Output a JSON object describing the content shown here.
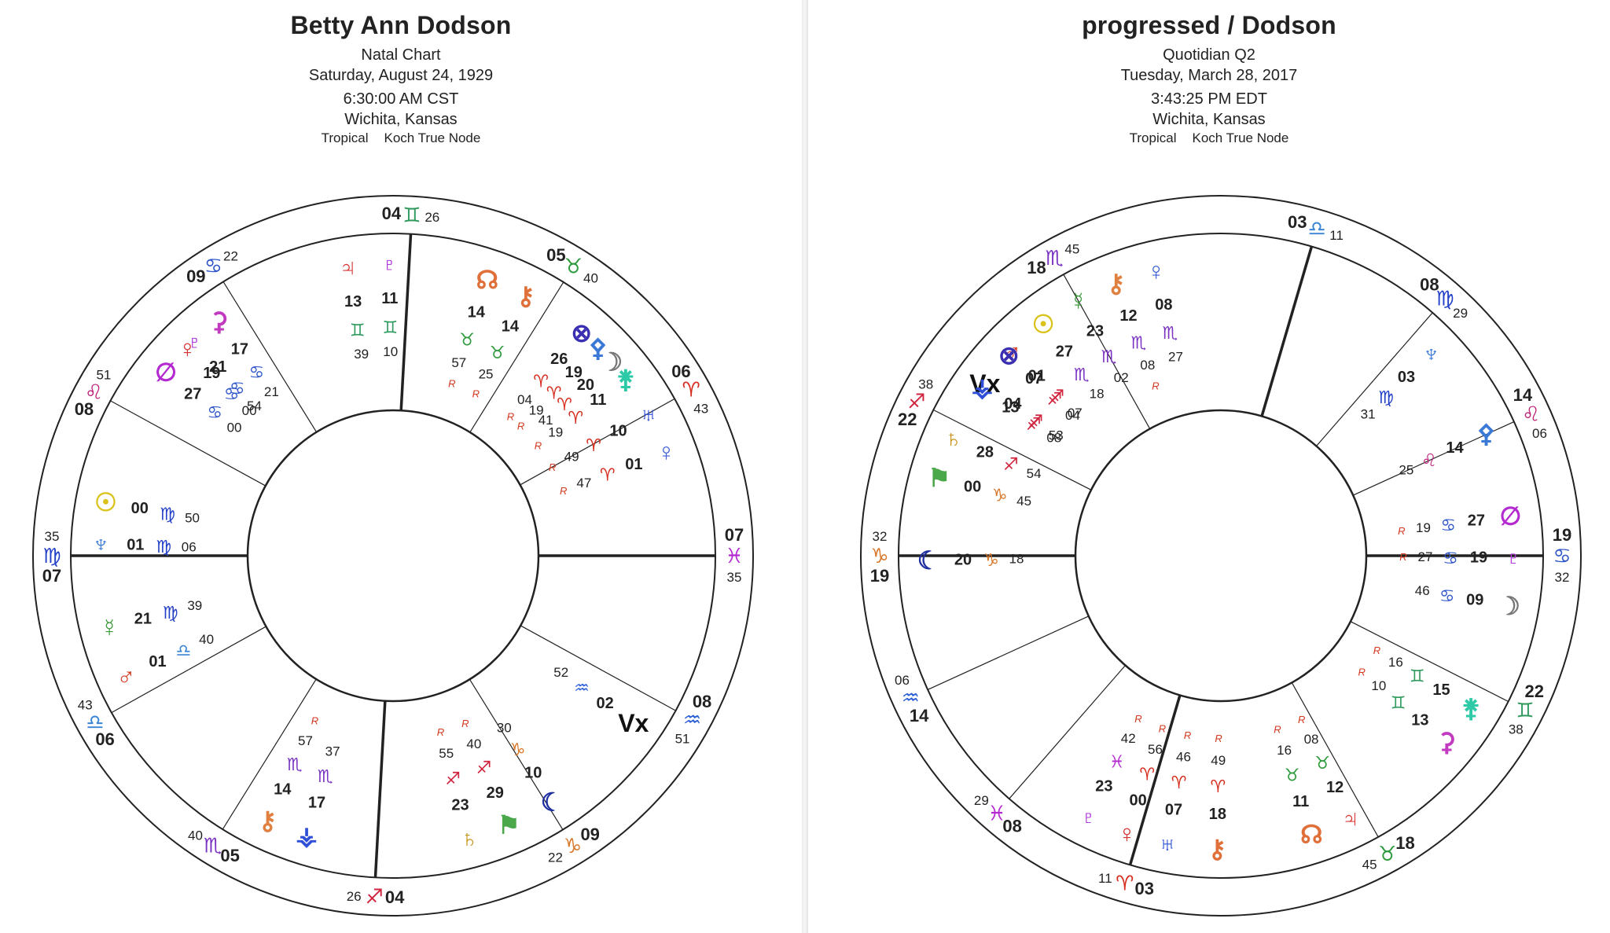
{
  "left": {
    "title": "Betty Ann Dodson",
    "chart_type": "Natal Chart",
    "date": "Saturday, August 24, 1929",
    "time": "6:30:00 AM CST",
    "location": "Wichita, Kansas",
    "zodiac": "Tropical",
    "house_system": "Koch True Node",
    "cusps": [
      {
        "deg": "07",
        "min": "35",
        "sign": "virgo"
      },
      {
        "deg": "06",
        "min": "43",
        "sign": "libra"
      },
      {
        "deg": "05",
        "min": "40",
        "sign": "scorpio"
      },
      {
        "deg": "04",
        "min": "26",
        "sign": "sagittarius"
      },
      {
        "deg": "09",
        "min": "22",
        "sign": "capricorn"
      },
      {
        "deg": "08",
        "min": "51",
        "sign": "aquarius"
      },
      {
        "deg": "07",
        "min": "35",
        "sign": "pisces"
      },
      {
        "deg": "06",
        "min": "43",
        "sign": "aries"
      },
      {
        "deg": "05",
        "min": "40",
        "sign": "taurus"
      },
      {
        "deg": "04",
        "min": "26",
        "sign": "gemini"
      },
      {
        "deg": "09",
        "min": "22",
        "sign": "cancer"
      },
      {
        "deg": "08",
        "min": "51",
        "sign": "leo"
      }
    ],
    "planets": [
      {
        "glyph": "sun",
        "deg": "00",
        "sign": "virgo",
        "min": "50",
        "r": false
      },
      {
        "glyph": "neptune",
        "deg": "01",
        "sign": "virgo",
        "min": "06",
        "r": false
      },
      {
        "glyph": "mercury",
        "deg": "21",
        "sign": "virgo",
        "min": "39",
        "r": false
      },
      {
        "glyph": "mars",
        "deg": "01",
        "sign": "libra",
        "min": "40",
        "r": false
      },
      {
        "glyph": "chiron",
        "deg": "14",
        "sign": "scorpio",
        "min": "57",
        "r": true
      },
      {
        "glyph": "vesta",
        "deg": "17",
        "sign": "scorpio",
        "min": "37",
        "r": false
      },
      {
        "glyph": "saturn",
        "deg": "23",
        "sign": "sagittarius",
        "min": "55",
        "r": true
      },
      {
        "glyph": "fortune",
        "deg": "29",
        "sign": "sagittarius",
        "min": "40",
        "r": true
      },
      {
        "glyph": "lilith",
        "deg": "10",
        "sign": "capricorn",
        "min": "30",
        "r": false
      },
      {
        "glyph": "vertex",
        "deg": "02",
        "sign": "aquarius",
        "min": "52",
        "r": false
      },
      {
        "glyph": "venus",
        "deg": "01",
        "sign": "aries",
        "min": "47",
        "r": true
      },
      {
        "glyph": "uranus",
        "deg": "10",
        "sign": "aries",
        "min": "49",
        "r": true
      },
      {
        "glyph": "juno",
        "deg": "11",
        "sign": "aries",
        "min": "19",
        "r": true
      },
      {
        "glyph": "pallas",
        "deg": "19",
        "sign": "aries",
        "min": "19",
        "r": true
      },
      {
        "glyph": "moon",
        "deg": "20",
        "sign": "aries",
        "min": "41",
        "r": false
      },
      {
        "glyph": "lot",
        "deg": "26",
        "sign": "aries",
        "min": "04",
        "r": true
      },
      {
        "glyph": "node",
        "deg": "14",
        "sign": "taurus",
        "min": "57",
        "r": true
      },
      {
        "glyph": "lilith2",
        "deg": "14",
        "sign": "taurus",
        "min": "25",
        "r": true
      },
      {
        "glyph": "pluto",
        "deg": "11",
        "sign": "gemini",
        "min": "10",
        "r": false
      },
      {
        "glyph": "jupiter",
        "deg": "13",
        "sign": "gemini",
        "min": "39",
        "r": false
      },
      {
        "glyph": "ceres",
        "deg": "17",
        "sign": "cancer",
        "min": "21",
        "r": false
      },
      {
        "glyph": "venus2",
        "deg": "19",
        "sign": "cancer",
        "min": "00",
        "r": false
      },
      {
        "glyph": "pluto2",
        "deg": "21",
        "sign": "cancer",
        "min": "54",
        "r": false
      },
      {
        "glyph": "antivertex",
        "deg": "27",
        "sign": "cancer",
        "min": "00",
        "r": false
      }
    ]
  },
  "right": {
    "title": "progressed / Dodson",
    "chart_type": "Quotidian Q2",
    "date": "Tuesday, March 28, 2017",
    "time": "3:43:25 PM EDT",
    "location": "Wichita, Kansas",
    "zodiac": "Tropical",
    "house_system": "Koch True Node",
    "cusps": [
      {
        "deg": "19",
        "min": "32",
        "sign": "capricorn"
      },
      {
        "deg": "14",
        "min": "06",
        "sign": "aquarius"
      },
      {
        "deg": "08",
        "min": "29",
        "sign": "pisces"
      },
      {
        "deg": "03",
        "min": "11",
        "sign": "aries"
      },
      {
        "deg": "18",
        "min": "45",
        "sign": "taurus"
      },
      {
        "deg": "22",
        "min": "38",
        "sign": "gemini"
      },
      {
        "deg": "19",
        "min": "32",
        "sign": "cancer"
      },
      {
        "deg": "14",
        "min": "06",
        "sign": "leo"
      },
      {
        "deg": "08",
        "min": "29",
        "sign": "virgo"
      },
      {
        "deg": "03",
        "min": "11",
        "sign": "libra"
      },
      {
        "deg": "18",
        "min": "45",
        "sign": "scorpio"
      },
      {
        "deg": "22",
        "min": "38",
        "sign": "sagittarius"
      }
    ],
    "planets": [
      {
        "glyph": "lilith",
        "deg": "20",
        "sign": "capricorn",
        "min": "18",
        "r": false
      },
      {
        "glyph": "fortune",
        "deg": "00",
        "sign": "capricorn",
        "min": "45",
        "r": false
      },
      {
        "glyph": "saturn",
        "deg": "28",
        "sign": "sagittarius",
        "min": "54",
        "r": false
      },
      {
        "glyph": "vesta",
        "deg": "13",
        "sign": "sagittarius",
        "min": "08",
        "r": false
      },
      {
        "glyph": "lot",
        "deg": "07",
        "sign": "sagittarius",
        "min": "04",
        "r": false
      },
      {
        "glyph": "vertex",
        "deg": "04",
        "sign": "sagittarius",
        "min": "53",
        "r": false
      },
      {
        "glyph": "mars",
        "deg": "01",
        "sign": "sagittarius",
        "min": "07",
        "r": false
      },
      {
        "glyph": "sun",
        "deg": "27",
        "sign": "scorpio",
        "min": "18",
        "r": false
      },
      {
        "glyph": "mercury",
        "deg": "23",
        "sign": "scorpio",
        "min": "02",
        "r": false
      },
      {
        "glyph": "chiron",
        "deg": "12",
        "sign": "scorpio",
        "min": "08",
        "r": true
      },
      {
        "glyph": "venus",
        "deg": "08",
        "sign": "scorpio",
        "min": "27",
        "r": false
      },
      {
        "glyph": "neptune",
        "deg": "03",
        "sign": "virgo",
        "min": "31",
        "r": false
      },
      {
        "glyph": "pallas",
        "deg": "14",
        "sign": "leo",
        "min": "25",
        "r": false
      },
      {
        "glyph": "antivertex",
        "deg": "27",
        "sign": "cancer",
        "min": "19",
        "r": true
      },
      {
        "glyph": "pluto",
        "deg": "19",
        "sign": "cancer",
        "min": "27",
        "r": true
      },
      {
        "glyph": "moon",
        "deg": "09",
        "sign": "cancer",
        "min": "46",
        "r": false
      },
      {
        "glyph": "ceres",
        "deg": "13",
        "sign": "gemini",
        "min": "10",
        "r": true
      },
      {
        "glyph": "juno",
        "deg": "15",
        "sign": "gemini",
        "min": "16",
        "r": true
      },
      {
        "glyph": "jupiter",
        "deg": "12",
        "sign": "taurus",
        "min": "08",
        "r": true
      },
      {
        "glyph": "node",
        "deg": "11",
        "sign": "taurus",
        "min": "16",
        "r": true
      },
      {
        "glyph": "lilith2",
        "deg": "18",
        "sign": "aries",
        "min": "49",
        "r": true
      },
      {
        "glyph": "uranus",
        "deg": "07",
        "sign": "aries",
        "min": "46",
        "r": true
      },
      {
        "glyph": "venus2",
        "deg": "00",
        "sign": "aries",
        "min": "56",
        "r": true
      },
      {
        "glyph": "pluto2",
        "deg": "23",
        "sign": "pisces",
        "min": "42",
        "r": true
      }
    ]
  },
  "retro_mark": "R"
}
